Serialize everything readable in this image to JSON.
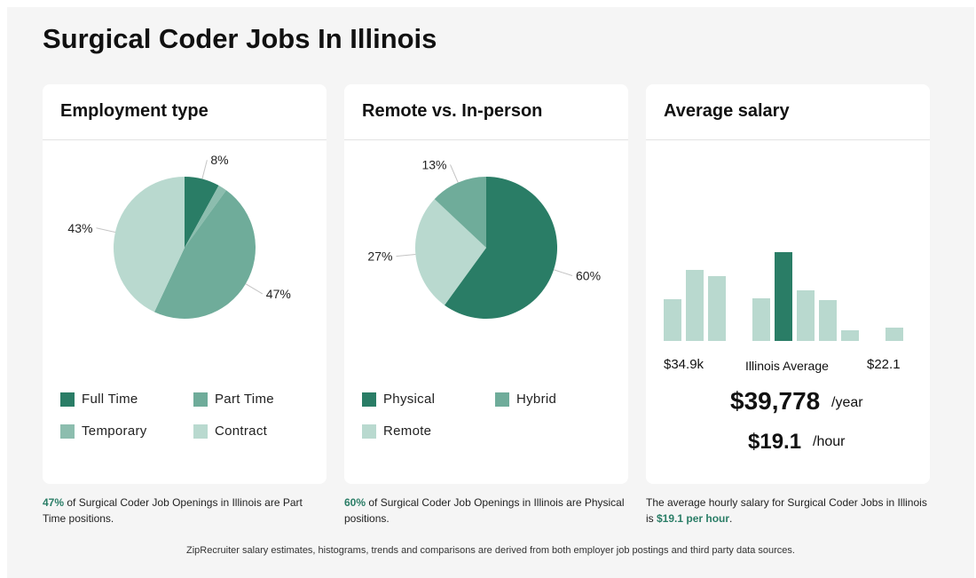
{
  "page": {
    "title": "Surgical Coder Jobs In Illinois",
    "footer": "ZipRecruiter salary estimates, histograms, trends and comparisons are derived from both employer job postings and third party data sources."
  },
  "colors": {
    "dark_green": "#2a7d66",
    "medium_green": "#6fac9a",
    "mid_light_green": "#8cbdae",
    "light_green": "#b9d9cf"
  },
  "chart_data": [
    {
      "type": "pie",
      "title": "Employment type",
      "slices": [
        {
          "label": "Full Time",
          "value": 8,
          "display": "8%",
          "color": "#2a7d66"
        },
        {
          "label": "Temporary",
          "value": 2,
          "display": "",
          "color": "#8cbdae"
        },
        {
          "label": "Part Time",
          "value": 47,
          "display": "47%",
          "color": "#6fac9a"
        },
        {
          "label": "Contract",
          "value": 43,
          "display": "43%",
          "color": "#b9d9cf"
        }
      ],
      "legend": [
        "Full Time",
        "Part Time",
        "Temporary",
        "Contract"
      ],
      "caption": {
        "highlight": "47%",
        "text": " of Surgical Coder Job Openings in Illinois are Part Time positions."
      }
    },
    {
      "type": "pie",
      "title": "Remote vs. In-person",
      "slices": [
        {
          "label": "Physical",
          "value": 60,
          "display": "60%",
          "color": "#2a7d66"
        },
        {
          "label": "Remote",
          "value": 27,
          "display": "27%",
          "color": "#b9d9cf"
        },
        {
          "label": "Hybrid",
          "value": 13,
          "display": "13%",
          "color": "#6fac9a"
        }
      ],
      "legend": [
        "Physical",
        "Hybrid",
        "Remote"
      ],
      "caption": {
        "highlight": "60%",
        "text": " of Surgical Coder Job Openings in Illinois are Physical positions."
      }
    },
    {
      "type": "bar",
      "title": "Average salary",
      "values": [
        47,
        80,
        73,
        0,
        48,
        100,
        57,
        46,
        12,
        0,
        15
      ],
      "highlight_index": 5,
      "min_label": "$34.9k",
      "center_label": "Illinois Average",
      "max_label": "$22.1",
      "annual_value": "$39,778",
      "annual_unit": "/year",
      "hourly_value": "$19.1",
      "hourly_unit": "/hour",
      "caption": {
        "text": "The average hourly salary for Surgical Coder Jobs in Illinois is ",
        "highlight": "$19.1 per hour",
        "end": "."
      }
    }
  ]
}
